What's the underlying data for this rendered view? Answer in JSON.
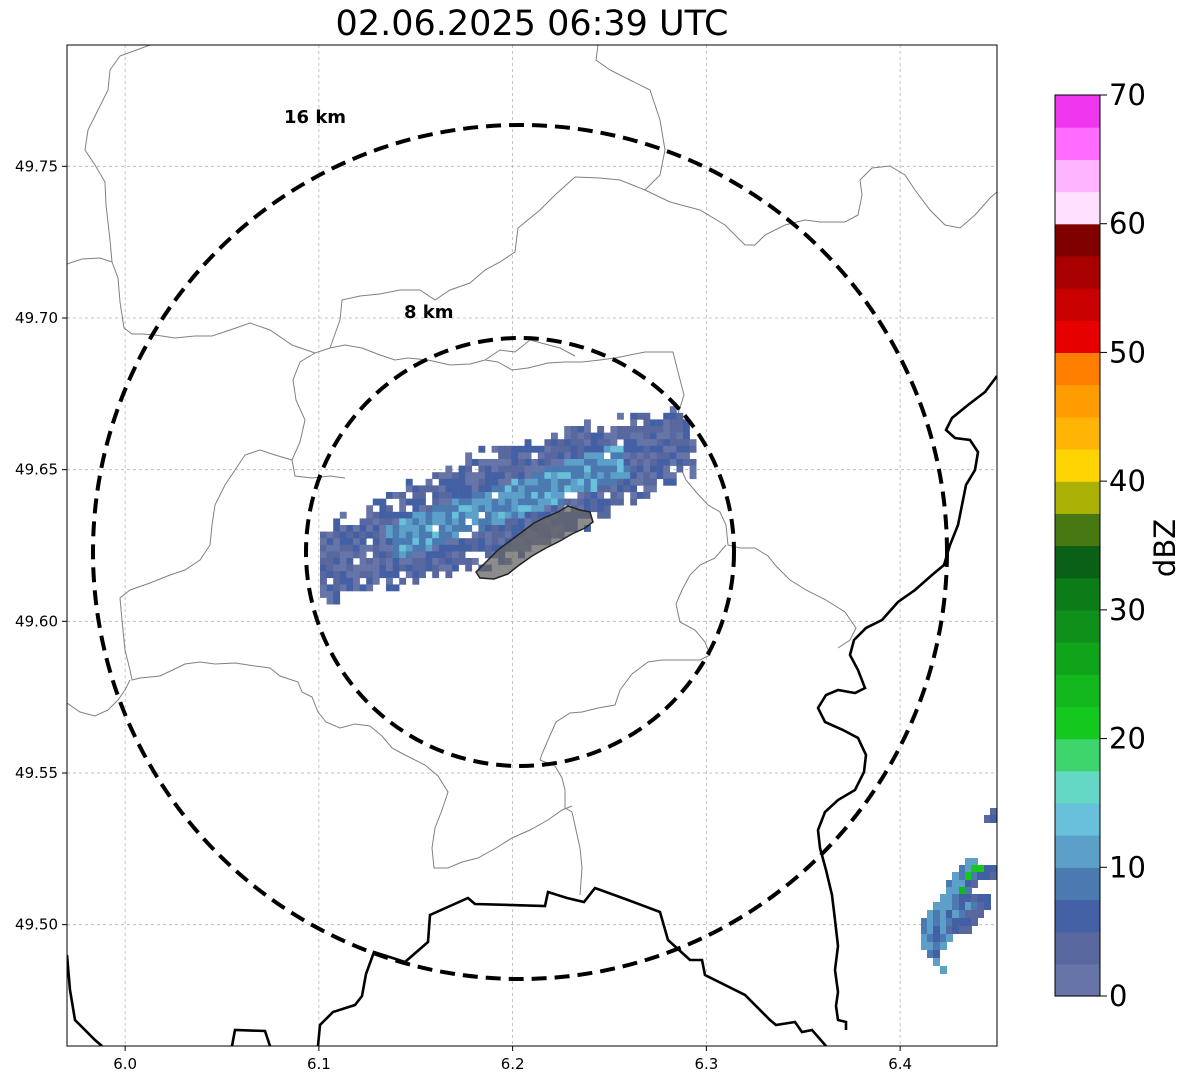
{
  "title": "02.06.2025 06:39 UTC",
  "map": {
    "x_ticks": [
      "6.0",
      "6.1",
      "6.2",
      "6.3",
      "6.4"
    ],
    "y_ticks": [
      "49.50",
      "49.55",
      "49.60",
      "49.65",
      "49.70",
      "49.75"
    ],
    "lon_range": [
      5.97,
      6.45
    ],
    "lat_range": [
      49.46,
      49.79
    ],
    "grid": true,
    "rings": [
      {
        "label": "16 km",
        "radius_km": 16
      },
      {
        "label": "8 km",
        "radius_km": 8
      }
    ],
    "ring_center": {
      "lon": 6.204,
      "lat": 49.623
    }
  },
  "colorbar": {
    "label": "dBZ",
    "ticks": [
      "0",
      "10",
      "20",
      "30",
      "40",
      "50",
      "60",
      "70"
    ],
    "range": [
      0,
      70
    ],
    "colors": [
      "#6674a8",
      "#58679e",
      "#4360a4",
      "#4a7ab0",
      "#5c9fc8",
      "#68c0da",
      "#64d8c4",
      "#3ed46c",
      "#14c81e",
      "#12b81c",
      "#10a41a",
      "#0e901a",
      "#0c7c18",
      "#0a6014",
      "#487812",
      "#aab004",
      "#ffd400",
      "#ffb406",
      "#ff9c00",
      "#ff7e00",
      "#e60000",
      "#c80000",
      "#a80000",
      "#800000",
      "#ffe0ff",
      "#ffb4ff",
      "#ff6cff",
      "#ee36ee"
    ]
  }
}
